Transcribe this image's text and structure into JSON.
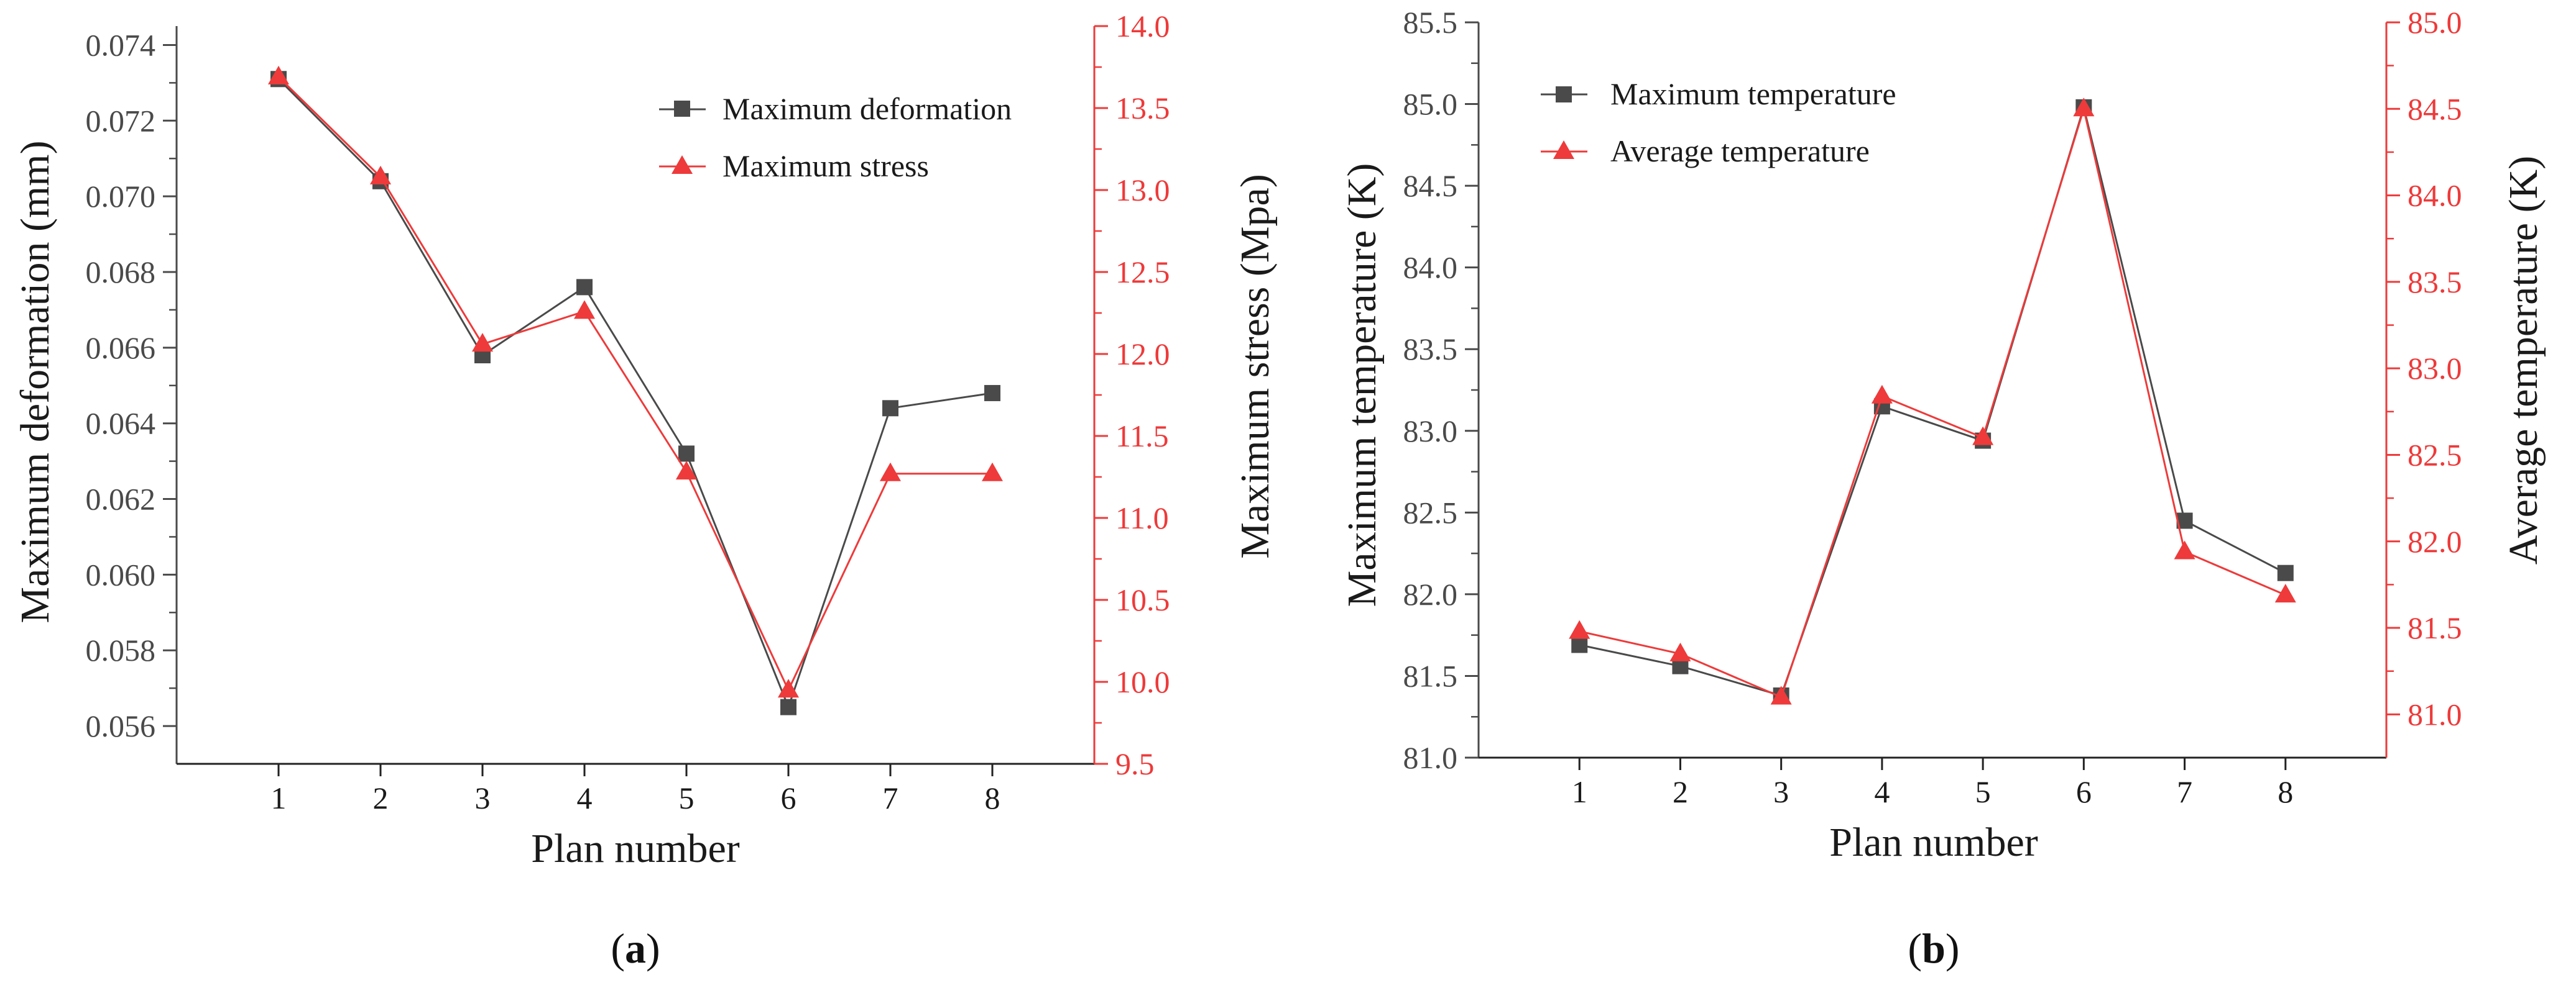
{
  "colors": {
    "left_axis": "#4a4a4a",
    "right_axis": "#ee3a3a",
    "series_a": "#4a4a4a",
    "series_b": "#ee3a3a"
  },
  "chart_data": [
    {
      "type": "line",
      "panel_label": {
        "open": "(",
        "letter": "a",
        "close": ")"
      },
      "xlabel": "Plan number",
      "ylabel_left": "Maximum deformation (mm)",
      "ylabel_right": "Maximum stress (Mpa)",
      "categories": [
        "1",
        "2",
        "3",
        "4",
        "5",
        "6",
        "7",
        "8"
      ],
      "x": [
        1,
        2,
        3,
        4,
        5,
        6,
        7,
        8
      ],
      "xlim": [
        0,
        9
      ],
      "ylim_left": [
        0.055,
        0.0745
      ],
      "ylim_right": [
        9.5,
        14.0
      ],
      "yticks_left": [
        "0.056",
        "0.058",
        "0.060",
        "0.062",
        "0.064",
        "0.066",
        "0.068",
        "0.070",
        "0.072",
        "0.074"
      ],
      "yticks_right": [
        "9.5",
        "10.0",
        "10.5",
        "11.0",
        "11.5",
        "12.0",
        "12.5",
        "13.0",
        "13.5",
        "14.0"
      ],
      "series": [
        {
          "name": "Maximum deformation",
          "axis": "left",
          "marker": "square",
          "color": "#4a4a4a",
          "values": [
            0.0731,
            0.0704,
            0.0658,
            0.0676,
            0.0632,
            0.0565,
            0.0644,
            0.0648
          ]
        },
        {
          "name": "Maximum stress",
          "axis": "right",
          "marker": "triangle",
          "color": "#ee3a3a",
          "values": [
            13.69,
            13.08,
            12.06,
            12.26,
            11.28,
            9.95,
            11.27,
            11.27
          ]
        }
      ],
      "legend_position": "top-right"
    },
    {
      "type": "line",
      "panel_label": {
        "open": "(",
        "letter": "b",
        "close": ")"
      },
      "xlabel": "Plan number",
      "ylabel_left": "Maximum temperature (K)",
      "ylabel_right": "Average temperature (K)",
      "categories": [
        "1",
        "2",
        "3",
        "4",
        "5",
        "6",
        "7",
        "8"
      ],
      "x": [
        1,
        2,
        3,
        4,
        5,
        6,
        7,
        8
      ],
      "xlim": [
        0,
        9
      ],
      "ylim_left": [
        81.0,
        85.5
      ],
      "ylim_right": [
        80.75,
        85.0
      ],
      "yticks_left": [
        "81.0",
        "81.5",
        "82.0",
        "82.5",
        "83.0",
        "83.5",
        "84.0",
        "84.5",
        "85.0",
        "85.5"
      ],
      "yticks_right": [
        "81.0",
        "81.5",
        "82.0",
        "82.5",
        "83.0",
        "83.5",
        "84.0",
        "84.5",
        "85.0"
      ],
      "series": [
        {
          "name": "Maximum temperature",
          "axis": "left",
          "marker": "square",
          "color": "#4a4a4a",
          "values": [
            81.69,
            81.56,
            81.38,
            83.15,
            82.94,
            84.98,
            82.45,
            82.13
          ]
        },
        {
          "name": "Average temperature",
          "axis": "right",
          "marker": "triangle",
          "color": "#ee3a3a",
          "values": [
            81.48,
            81.35,
            81.1,
            82.84,
            82.6,
            84.5,
            81.94,
            81.69
          ]
        }
      ],
      "legend_position": "top-left"
    }
  ]
}
